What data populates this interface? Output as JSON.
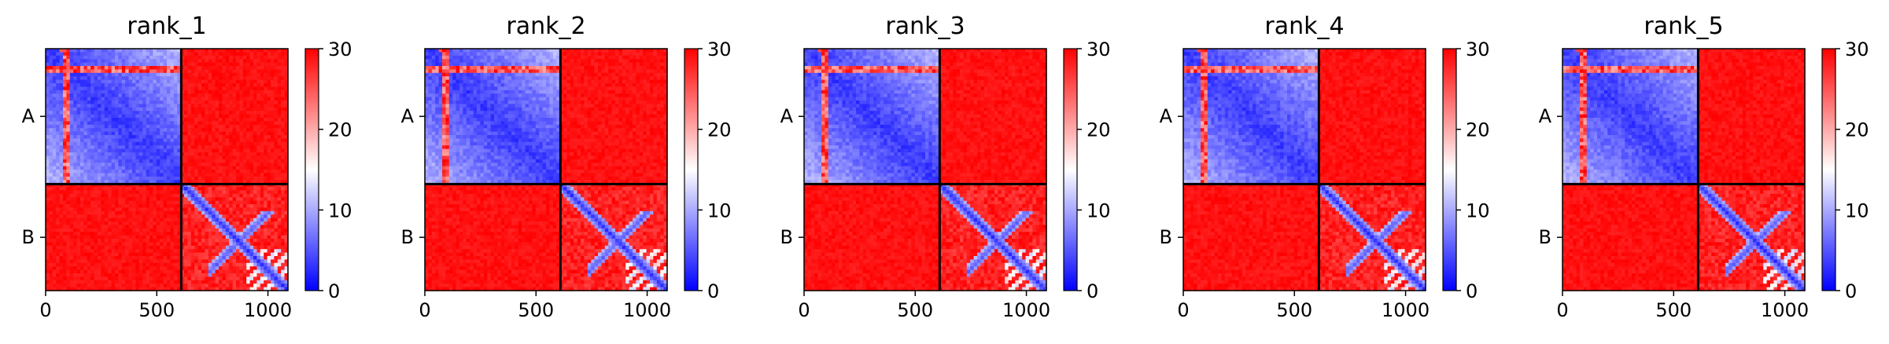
{
  "colors": {
    "low": "#0000ff",
    "mid": "#ffffff",
    "high": "#ff0000",
    "axis": "#000000",
    "background": "#ffffff"
  },
  "colorbar": {
    "min": 0,
    "max": 30,
    "ticks": [
      "0",
      "10",
      "20",
      "30"
    ],
    "colormap": "bwr"
  },
  "chart_data": [
    {
      "type": "heatmap",
      "title": "rank_1",
      "xlabel": "",
      "ylabel": "",
      "x_ticks": [
        "0",
        "500",
        "1000"
      ],
      "y_ticks": [
        "A",
        "B"
      ],
      "xlim": [
        0,
        1090
      ],
      "segments": [
        {
          "name": "A",
          "start": 0,
          "end": 610
        },
        {
          "name": "B",
          "start": 610,
          "end": 1090
        }
      ],
      "zlim": [
        0,
        30
      ],
      "blocks": [
        {
          "rows": "A",
          "cols": "A",
          "typical": 8
        },
        {
          "rows": "A",
          "cols": "B",
          "typical": 30
        },
        {
          "rows": "B",
          "cols": "A",
          "typical": 30
        },
        {
          "rows": "B",
          "cols": "B",
          "typical": 26
        }
      ]
    },
    {
      "type": "heatmap",
      "title": "rank_2",
      "xlabel": "",
      "ylabel": "",
      "x_ticks": [
        "0",
        "500",
        "1000"
      ],
      "y_ticks": [
        "A",
        "B"
      ],
      "xlim": [
        0,
        1090
      ],
      "segments": [
        {
          "name": "A",
          "start": 0,
          "end": 610
        },
        {
          "name": "B",
          "start": 610,
          "end": 1090
        }
      ],
      "zlim": [
        0,
        30
      ],
      "blocks": [
        {
          "rows": "A",
          "cols": "A",
          "typical": 8
        },
        {
          "rows": "A",
          "cols": "B",
          "typical": 30
        },
        {
          "rows": "B",
          "cols": "A",
          "typical": 30
        },
        {
          "rows": "B",
          "cols": "B",
          "typical": 26
        }
      ]
    },
    {
      "type": "heatmap",
      "title": "rank_3",
      "xlabel": "",
      "ylabel": "",
      "x_ticks": [
        "0",
        "500",
        "1000"
      ],
      "y_ticks": [
        "A",
        "B"
      ],
      "xlim": [
        0,
        1090
      ],
      "segments": [
        {
          "name": "A",
          "start": 0,
          "end": 610
        },
        {
          "name": "B",
          "start": 610,
          "end": 1090
        }
      ],
      "zlim": [
        0,
        30
      ],
      "blocks": [
        {
          "rows": "A",
          "cols": "A",
          "typical": 8
        },
        {
          "rows": "A",
          "cols": "B",
          "typical": 30
        },
        {
          "rows": "B",
          "cols": "A",
          "typical": 30
        },
        {
          "rows": "B",
          "cols": "B",
          "typical": 26
        }
      ]
    },
    {
      "type": "heatmap",
      "title": "rank_4",
      "xlabel": "",
      "ylabel": "",
      "x_ticks": [
        "0",
        "500",
        "1000"
      ],
      "y_ticks": [
        "A",
        "B"
      ],
      "xlim": [
        0,
        1090
      ],
      "segments": [
        {
          "name": "A",
          "start": 0,
          "end": 610
        },
        {
          "name": "B",
          "start": 610,
          "end": 1090
        }
      ],
      "zlim": [
        0,
        30
      ],
      "blocks": [
        {
          "rows": "A",
          "cols": "A",
          "typical": 8
        },
        {
          "rows": "A",
          "cols": "B",
          "typical": 30
        },
        {
          "rows": "B",
          "cols": "A",
          "typical": 30
        },
        {
          "rows": "B",
          "cols": "B",
          "typical": 26
        }
      ]
    },
    {
      "type": "heatmap",
      "title": "rank_5",
      "xlabel": "",
      "ylabel": "",
      "x_ticks": [
        "0",
        "500",
        "1000"
      ],
      "y_ticks": [
        "A",
        "B"
      ],
      "xlim": [
        0,
        1090
      ],
      "segments": [
        {
          "name": "A",
          "start": 0,
          "end": 610
        },
        {
          "name": "B",
          "start": 610,
          "end": 1090
        }
      ],
      "zlim": [
        0,
        30
      ],
      "blocks": [
        {
          "rows": "A",
          "cols": "A",
          "typical": 8
        },
        {
          "rows": "A",
          "cols": "B",
          "typical": 30
        },
        {
          "rows": "B",
          "cols": "A",
          "typical": 30
        },
        {
          "rows": "B",
          "cols": "B",
          "typical": 26
        }
      ]
    }
  ]
}
